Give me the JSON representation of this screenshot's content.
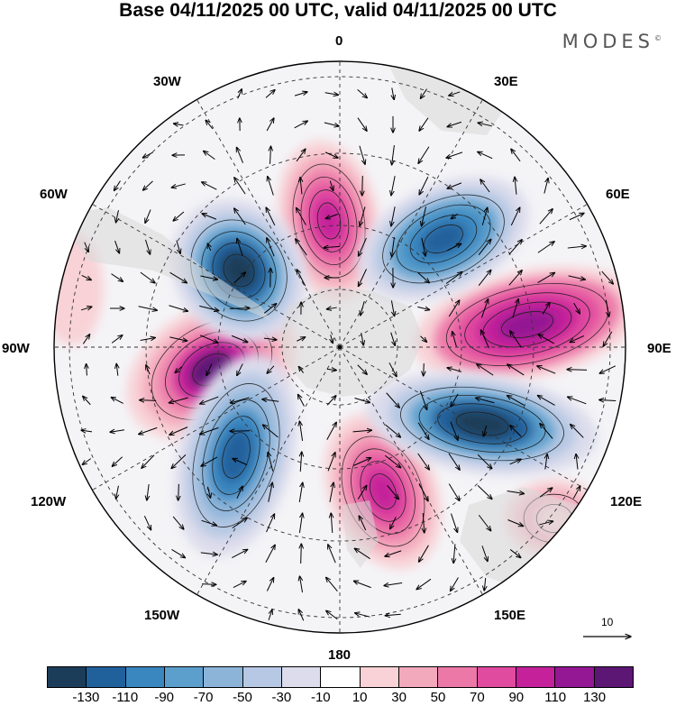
{
  "header": {
    "title": "Base 04/11/2025 00 UTC, valid 04/11/2025 00 UTC",
    "logo": "MODES",
    "logo_mark": "©"
  },
  "map": {
    "projection": "south-polar-stereographic",
    "longitude_labels": {
      "top": "0",
      "top_right": "30E",
      "upper_right": "60E",
      "right": "90E",
      "lower_right": "120E",
      "bottom_right": "150E",
      "bottom": "180",
      "bottom_left": "150W",
      "lower_left": "120W",
      "left": "90W",
      "upper_left": "60W",
      "top_left": "30W"
    },
    "reference_vector_label": "10"
  },
  "colorbar": {
    "colors": [
      "#1b3d59",
      "#20609b",
      "#3a86bf",
      "#5c9fcc",
      "#8cb4d9",
      "#b6c8e3",
      "#dcdcec",
      "#ffffff",
      "#f8d2d6",
      "#f3a9bc",
      "#ec78a8",
      "#e04a9f",
      "#c4219a",
      "#941793",
      "#5c1674"
    ],
    "tick_labels": [
      "-130",
      "-110",
      "-90",
      "-70",
      "-50",
      "-30",
      "-10",
      "10",
      "30",
      "50",
      "70",
      "90",
      "110",
      "130"
    ]
  }
}
